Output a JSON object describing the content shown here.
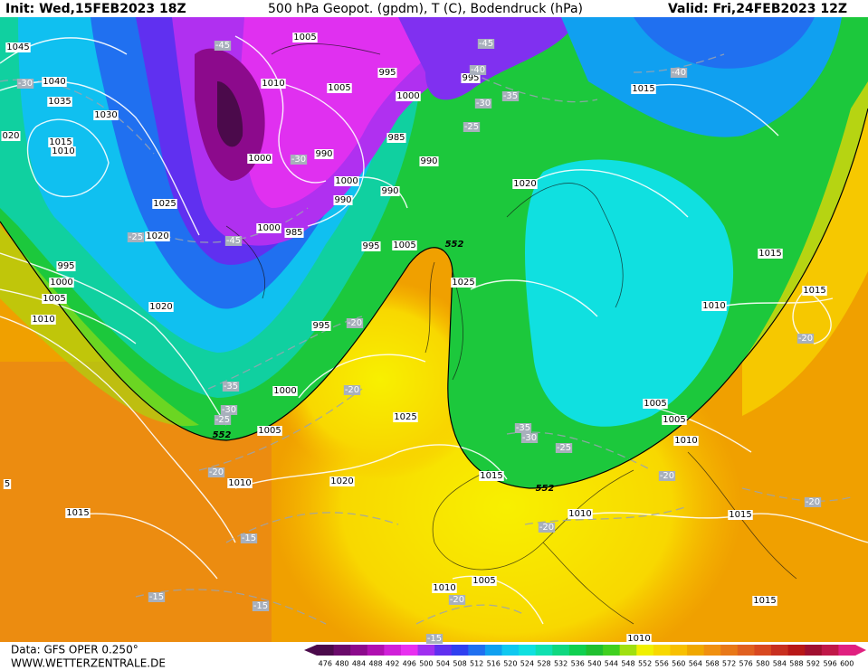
{
  "header": {
    "init": "Init: Wed,15FEB2023 18Z",
    "title": "500 hPa Geopot. (gpdm), T (C), Bodendruck (hPa)",
    "valid": "Valid: Fri,24FEB2023 12Z"
  },
  "footer": {
    "source": "Data: GFS OPER 0.250°",
    "site": "WWW.WETTERZENTRALE.DE"
  },
  "map": {
    "pressure_labels": [
      1045,
      1040,
      1035,
      1030,
      "020",
      1015,
      1010,
      1025,
      1020,
      995,
      1000,
      1005,
      1010,
      1020,
      1005,
      995,
      1010,
      1005,
      1000,
      995,
      985,
      990,
      990,
      1000,
      1000,
      990,
      990,
      1000,
      985,
      995,
      1005,
      1025,
      995,
      1000,
      1005,
      1010,
      1020,
      1025,
      1015,
      1015,
      1020,
      1015,
      1015,
      1015,
      1010,
      1005,
      1005,
      1010,
      1010,
      1015,
      1015,
      1005,
      1010,
      1010,
      5
    ],
    "temperature_labels": [
      -45,
      -45,
      -40,
      -30,
      -40,
      -35,
      -30,
      -25,
      -30,
      -45,
      -25,
      -20,
      -20,
      -35,
      -30,
      -25,
      -20,
      -35,
      -30,
      -25,
      -20,
      -20,
      -20,
      -20,
      -15,
      -15,
      -15,
      -20,
      -15
    ],
    "height_labels": [
      552,
      552,
      552
    ]
  },
  "colorbar": {
    "ticks": [
      476,
      480,
      484,
      488,
      492,
      496,
      500,
      504,
      508,
      512,
      516,
      520,
      524,
      528,
      532,
      536,
      540,
      544,
      548,
      552,
      556,
      560,
      564,
      568,
      572,
      576,
      580,
      584,
      588,
      592,
      596,
      600
    ],
    "colors": [
      "#4b0a4b",
      "#6a0a6a",
      "#8c0a8c",
      "#b010b0",
      "#d020d8",
      "#e830f0",
      "#a030f0",
      "#6030f0",
      "#3040f0",
      "#2070f0",
      "#10a0f0",
      "#10c8f0",
      "#10e0e0",
      "#10e0b0",
      "#10d880",
      "#10d050",
      "#20c030",
      "#40d020",
      "#a0e010",
      "#f0f000",
      "#f8d800",
      "#f8c000",
      "#f0a800",
      "#f09010",
      "#e87818",
      "#e06020",
      "#d84820",
      "#c83020",
      "#b81818",
      "#a01030",
      "#c01848",
      "#e02080"
    ]
  }
}
